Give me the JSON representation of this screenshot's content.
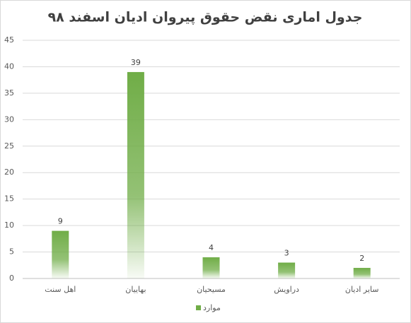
{
  "chart_data": {
    "type": "bar",
    "title": "جدول اماری نقض حقوق پیروان ادیان اسفند ۹۸",
    "categories": [
      "اهل سنت",
      "بهاییان",
      "مسیحیان",
      "دراویش",
      "سایر ادیان"
    ],
    "series": [
      {
        "name": "موارد",
        "color": "#70ad47",
        "values": [
          9,
          39,
          4,
          3,
          2
        ]
      }
    ],
    "ylim": [
      0,
      45
    ],
    "yticks": [
      0,
      5,
      10,
      15,
      20,
      25,
      30,
      35,
      40,
      45
    ],
    "grid": true,
    "legend": "bottom"
  }
}
